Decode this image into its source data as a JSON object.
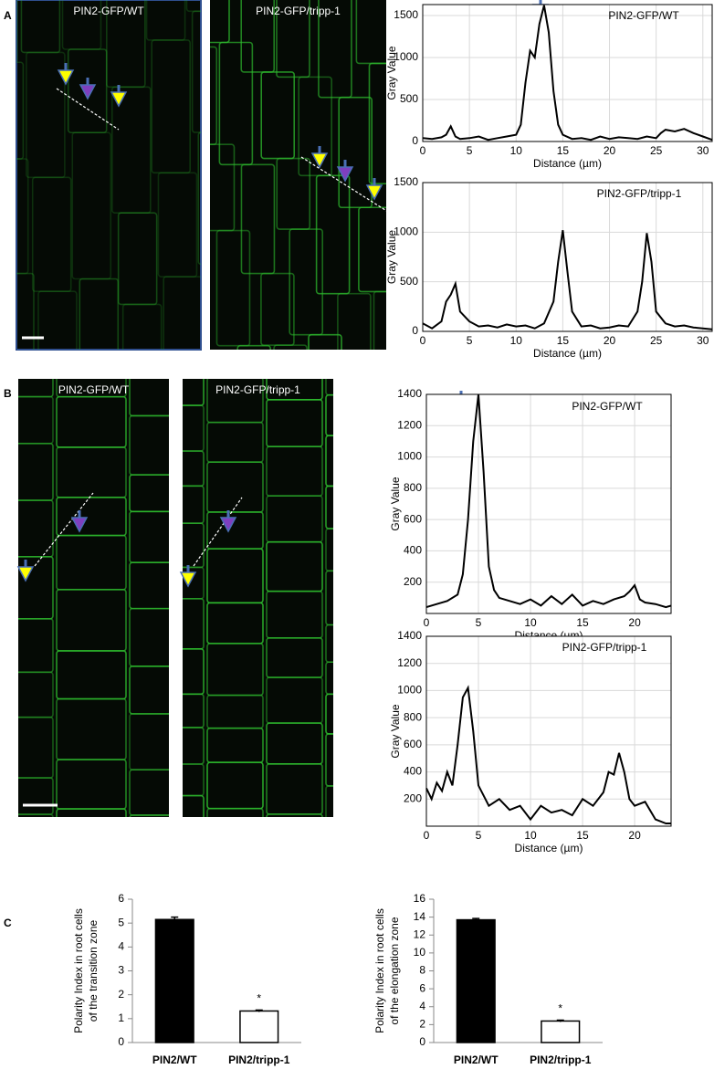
{
  "panel_labels": [
    "A",
    "B",
    "C"
  ],
  "images": [
    {
      "label": "PIN2-GFP/WT"
    },
    {
      "label": "PIN2-GFP/tripp-1"
    },
    {
      "label": "PIN2-GFP/WT"
    },
    {
      "label": "PIN2-GFP/tripp-1"
    }
  ],
  "chart_data": [
    {
      "type": "line",
      "title": "PIN2-GFP/WT",
      "xlabel": "Distance (µm)",
      "ylabel": "Gray Value",
      "color": "#000000",
      "grid": true,
      "x": [
        0,
        1,
        2,
        2.5,
        3,
        3.5,
        4,
        5,
        6,
        7,
        8,
        9,
        10,
        10.5,
        11,
        11.5,
        12,
        12.5,
        13,
        13.5,
        14,
        14.5,
        15,
        16,
        17,
        18,
        19,
        20,
        21,
        22,
        23,
        24,
        25,
        25.5,
        26,
        27,
        28,
        29,
        30,
        31
      ],
      "values": [
        40,
        30,
        50,
        80,
        180,
        60,
        30,
        40,
        60,
        20,
        40,
        60,
        80,
        200,
        700,
        1080,
        1000,
        1400,
        1620,
        1300,
        600,
        200,
        80,
        30,
        40,
        20,
        60,
        30,
        50,
        40,
        30,
        60,
        40,
        100,
        140,
        120,
        150,
        100,
        60,
        20
      ],
      "xlim": [
        0,
        31
      ],
      "xticks": [
        0,
        5,
        10,
        15,
        20,
        25,
        30
      ],
      "ylim": [
        0,
        1630
      ],
      "yticks": [
        0,
        500,
        1000,
        1500
      ]
    },
    {
      "type": "line",
      "title": "PIN2-GFP/tripp-1",
      "xlabel": "Distance (µm)",
      "ylabel": "Gray Value",
      "color": "#000000",
      "grid": true,
      "x": [
        0,
        1,
        2,
        2.5,
        3,
        3.5,
        4,
        4.5,
        5,
        6,
        7,
        8,
        9,
        10,
        11,
        12,
        13,
        14,
        14.5,
        15,
        15.5,
        16,
        17,
        18,
        19,
        20,
        21,
        22,
        23,
        23.5,
        24,
        24.5,
        25,
        26,
        27,
        28,
        29,
        30,
        31
      ],
      "values": [
        80,
        30,
        100,
        300,
        370,
        480,
        200,
        150,
        100,
        50,
        60,
        40,
        70,
        50,
        60,
        30,
        80,
        300,
        700,
        1020,
        600,
        200,
        50,
        60,
        30,
        40,
        60,
        50,
        200,
        500,
        990,
        700,
        200,
        80,
        50,
        60,
        40,
        30,
        20
      ],
      "xlim": [
        0,
        31
      ],
      "xticks": [
        0,
        5,
        10,
        15,
        20,
        25,
        30
      ],
      "ylim": [
        0,
        1500
      ],
      "yticks": [
        0,
        500,
        1000,
        1500
      ]
    },
    {
      "type": "line",
      "title": "PIN2-GFP/WT",
      "xlabel": "Distance (µm)",
      "ylabel": "Gray Value",
      "color": "#000000",
      "grid": true,
      "x": [
        0,
        1,
        2,
        3,
        3.5,
        4,
        4.5,
        5,
        5.5,
        6,
        6.5,
        7,
        8,
        9,
        10,
        11,
        12,
        13,
        14,
        15,
        16,
        17,
        18,
        19,
        19.5,
        20,
        20.5,
        21,
        22,
        23,
        23.5
      ],
      "values": [
        40,
        60,
        80,
        120,
        250,
        600,
        1100,
        1400,
        900,
        300,
        150,
        100,
        80,
        60,
        90,
        50,
        110,
        60,
        120,
        50,
        80,
        60,
        90,
        110,
        140,
        180,
        90,
        70,
        60,
        40,
        50
      ],
      "xlim": [
        0,
        23.5
      ],
      "xticks": [
        0,
        5,
        10,
        15,
        20
      ],
      "ylim": [
        0,
        1400
      ],
      "yticks": [
        200,
        400,
        600,
        800,
        1000,
        1200,
        1400
      ]
    },
    {
      "type": "line",
      "title": "PIN2-GFP/tripp-1",
      "xlabel": "Distance (µm)",
      "ylabel": "Gray Value",
      "color": "#000000",
      "grid": true,
      "x": [
        0,
        0.5,
        1,
        1.5,
        2,
        2.5,
        3,
        3.5,
        4,
        4.5,
        5,
        6,
        7,
        8,
        9,
        10,
        11,
        12,
        13,
        14,
        15,
        16,
        17,
        17.5,
        18,
        18.5,
        19,
        19.5,
        20,
        21,
        22,
        23,
        23.5
      ],
      "values": [
        280,
        200,
        320,
        260,
        400,
        300,
        600,
        950,
        1020,
        700,
        300,
        150,
        200,
        120,
        150,
        50,
        150,
        100,
        120,
        80,
        200,
        150,
        250,
        400,
        380,
        540,
        400,
        200,
        150,
        180,
        50,
        20,
        20
      ],
      "xlim": [
        0,
        23.5
      ],
      "xticks": [
        0,
        5,
        10,
        15,
        20
      ],
      "ylim": [
        0,
        1400
      ],
      "yticks": [
        200,
        400,
        600,
        800,
        1000,
        1200,
        1400
      ]
    },
    {
      "type": "bar",
      "ylabel": [
        "Polarity Index in root cells",
        "of the transition zone"
      ],
      "categories": [
        "PIN2/WT",
        "PIN2/tripp-1"
      ],
      "values": [
        5.15,
        1.32
      ],
      "errors": [
        0.1,
        0.04
      ],
      "colors": [
        "#000000",
        "#ffffff"
      ],
      "ylim": [
        0,
        6
      ],
      "yticks": [
        0,
        1,
        2,
        3,
        4,
        5,
        6
      ],
      "annotations": [
        {
          "text": "*",
          "x": "PIN2/tripp-1"
        }
      ]
    },
    {
      "type": "bar",
      "ylabel": [
        "Polarity Index in root cells",
        "of the elongation zone"
      ],
      "categories": [
        "PIN2/WT",
        "PIN2/tripp-1"
      ],
      "values": [
        13.7,
        2.4
      ],
      "errors": [
        0.15,
        0.1
      ],
      "colors": [
        "#000000",
        "#ffffff"
      ],
      "ylim": [
        0,
        16
      ],
      "yticks": [
        0,
        2,
        4,
        6,
        8,
        10,
        12,
        14,
        16
      ],
      "annotations": [
        {
          "text": "*",
          "x": "PIN2/tripp-1"
        }
      ]
    }
  ]
}
